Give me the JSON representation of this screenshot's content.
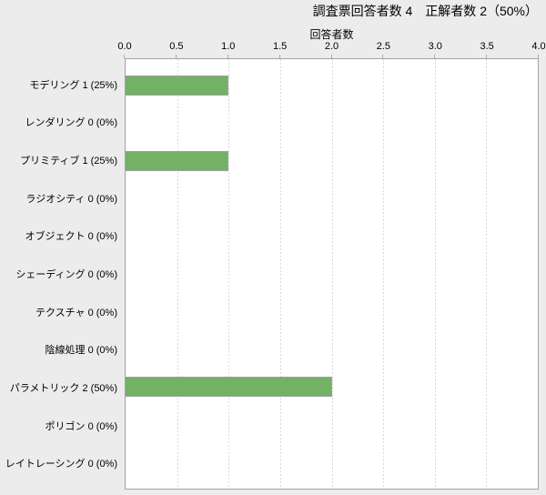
{
  "header": {
    "title": "調査票回答者数 4　正解者数 2（50%）"
  },
  "chart_data": {
    "type": "bar",
    "orientation": "horizontal",
    "title": "調査票回答者数 4　正解者数 2（50%）",
    "xlabel": "回答者数",
    "ylabel": "",
    "categories": [
      "モデリング",
      "レンダリング",
      "プリミティブ",
      "ラジオシティ",
      "オブジェクト",
      "シェーディング",
      "テクスチャ",
      "陰線処理",
      "パラメトリック",
      "ポリゴン",
      "レイトレーシング"
    ],
    "category_display_labels": [
      "モデリング 1 (25%)",
      "レンダリング 0 (0%)",
      "プリミティブ 1 (25%)",
      "ラジオシティ 0 (0%)",
      "オブジェクト 0 (0%)",
      "シェーディング 0 (0%)",
      "テクスチャ 0 (0%)",
      "陰線処理 0 (0%)",
      "パラメトリック 2 (50%)",
      "ポリゴン 0 (0%)",
      "レイトレーシング 0 (0%)"
    ],
    "values": [
      1,
      0,
      1,
      0,
      0,
      0,
      0,
      0,
      2,
      0,
      0
    ],
    "xlim": [
      0.0,
      4.0
    ],
    "xtick_labels": [
      "0.0",
      "0.5",
      "1.0",
      "1.5",
      "2.0",
      "2.5",
      "3.0",
      "3.5",
      "4.0"
    ],
    "xtick_values": [
      0.0,
      0.5,
      1.0,
      1.5,
      2.0,
      2.5,
      3.0,
      3.5,
      4.0
    ],
    "grid": "vertical-dashed",
    "legend": false
  },
  "colors": {
    "page_background": "#ececec",
    "plot_background": "#ffffff",
    "plot_border": "#a3a3a3",
    "gridline": "#d9d9d9",
    "tick_mark": "#aaaaaa",
    "bar_fill": "#73b167",
    "bar_border": "#9f9f9f",
    "text": "#000000"
  }
}
